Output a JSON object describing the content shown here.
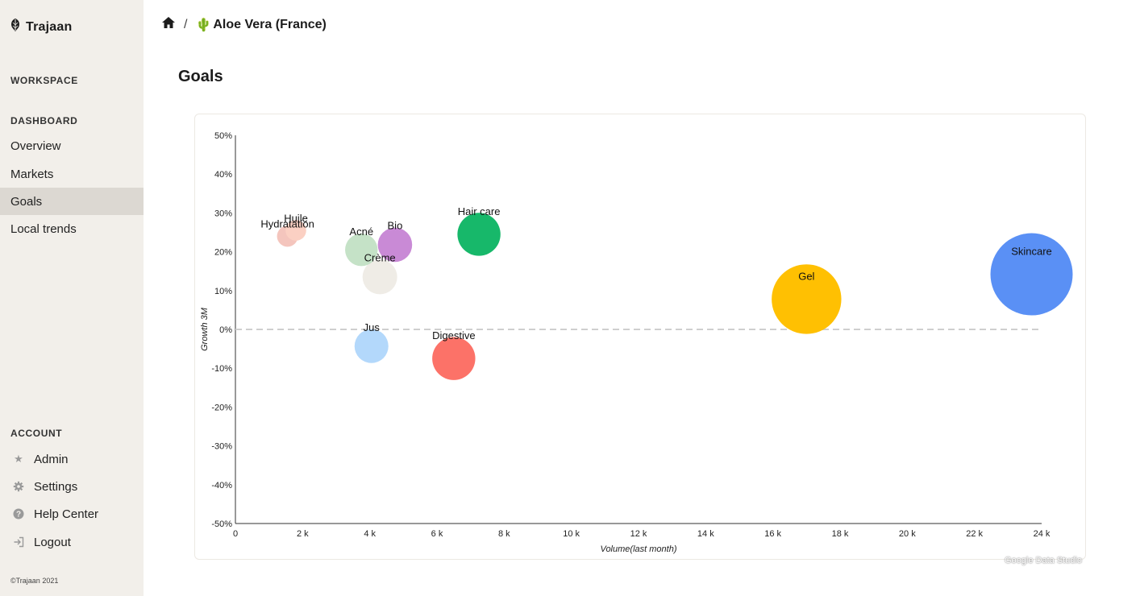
{
  "app": {
    "name": "Trajaan"
  },
  "sidebar": {
    "workspace_label": "WORKSPACE",
    "dashboard_label": "DASHBOARD",
    "dashboard_items": [
      {
        "label": "Overview",
        "icon": "none"
      },
      {
        "label": "Markets",
        "icon": "none"
      },
      {
        "label": "Goals",
        "icon": "none",
        "active": true
      },
      {
        "label": "Local trends",
        "icon": "none"
      }
    ],
    "account_label": "ACCOUNT",
    "account_items": [
      {
        "label": "Admin",
        "icon": "star-icon"
      },
      {
        "label": "Settings",
        "icon": "gear-icon"
      },
      {
        "label": "Help Center",
        "icon": "help-icon"
      },
      {
        "label": "Logout",
        "icon": "logout-icon"
      }
    ],
    "copyright": "©Trajaan 2021"
  },
  "breadcrumb": {
    "home_icon": "home-icon",
    "separator": "/",
    "current_emoji": "🌵",
    "current": "Aloe Vera (France)"
  },
  "page": {
    "title": "Goals"
  },
  "watermark": "Google Data Studio",
  "colors": {
    "sidebar_bg": "#f2efea",
    "active_item_bg": "#dcd8d2"
  },
  "chart_data": {
    "type": "scatter",
    "subtype": "bubble",
    "title": "",
    "xlabel": "Volume(last month)",
    "ylabel": "Growth 3M",
    "xlim": [
      0,
      24000
    ],
    "ylim": [
      -50,
      50
    ],
    "x_ticks": [
      0,
      2000,
      4000,
      6000,
      8000,
      10000,
      12000,
      14000,
      16000,
      18000,
      20000,
      22000,
      24000
    ],
    "x_tick_labels": [
      "0",
      "2 k",
      "4 k",
      "6 k",
      "8 k",
      "10 k",
      "12 k",
      "14 k",
      "16 k",
      "18 k",
      "20 k",
      "22 k",
      "24 k"
    ],
    "y_ticks": [
      50,
      40,
      30,
      20,
      10,
      0,
      -10,
      -20,
      -30,
      -40,
      -50
    ],
    "y_tick_labels": [
      "50%",
      "40%",
      "30%",
      "20%",
      "10%",
      "0%",
      "-10%",
      "-20%",
      "-30%",
      "-40%",
      "-50%"
    ],
    "zero_line": true,
    "points": [
      {
        "label": "Hydratation",
        "x": 1550,
        "y": 24,
        "size": 1550,
        "color": "#f4c5bd"
      },
      {
        "label": "Huile",
        "x": 1800,
        "y": 25.5,
        "size": 1500,
        "color": "#fbd0c3"
      },
      {
        "label": "Acné",
        "x": 3750,
        "y": 20.5,
        "size": 3700,
        "color": "#c5e2c7"
      },
      {
        "label": "Bio",
        "x": 4750,
        "y": 21.8,
        "size": 4150,
        "color": "#c98ad6"
      },
      {
        "label": "Crème",
        "x": 4300,
        "y": 13.5,
        "size": 4200,
        "color": "#efece6"
      },
      {
        "label": "Hair care",
        "x": 7250,
        "y": 24.5,
        "size": 6500,
        "color": "#17b86a"
      },
      {
        "label": "Jus",
        "x": 4050,
        "y": -4.3,
        "size": 4000,
        "color": "#b3d8fb"
      },
      {
        "label": "Digestive",
        "x": 6500,
        "y": -7.5,
        "size": 6500,
        "color": "#fc7268"
      },
      {
        "label": "Gel",
        "x": 17000,
        "y": 7.8,
        "size": 17000,
        "color": "#ffc002"
      },
      {
        "label": "Skincare",
        "x": 23700,
        "y": 14.2,
        "size": 23700,
        "color": "#5a90f5"
      }
    ]
  }
}
